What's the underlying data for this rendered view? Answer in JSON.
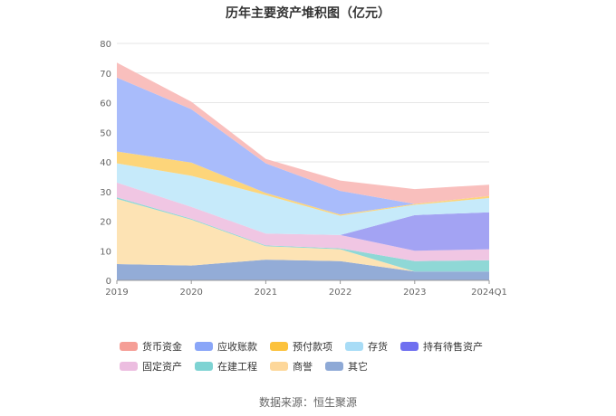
{
  "chart_data": {
    "type": "area",
    "stacked": true,
    "title": "历年主要资产堆积图（亿元）",
    "x": [
      "2019",
      "2020",
      "2021",
      "2022",
      "2023",
      "2024Q1"
    ],
    "ylim": [
      0,
      80
    ],
    "yticks": [
      0,
      10,
      20,
      30,
      40,
      50,
      60,
      70,
      80
    ],
    "grid": true,
    "legend_position": "bottom",
    "series": [
      {
        "name": "其它",
        "color": "#93acd7",
        "values": [
          5.5,
          5.0,
          7.0,
          6.5,
          3.0,
          3.0
        ]
      },
      {
        "name": "商誉",
        "color": "#fde3b4",
        "values": [
          22.0,
          15.5,
          4.5,
          4.0,
          0.0,
          0.0
        ]
      },
      {
        "name": "在建工程",
        "color": "#8fd8d6",
        "values": [
          0.5,
          0.3,
          0.3,
          0.3,
          3.5,
          3.8
        ]
      },
      {
        "name": "固定资产",
        "color": "#f0c6e3",
        "values": [
          5.0,
          4.0,
          4.0,
          4.5,
          3.5,
          3.7
        ]
      },
      {
        "name": "持有待售资产",
        "color": "#a3a3f3",
        "values": [
          0.0,
          0.0,
          0.0,
          0.0,
          12.0,
          12.5
        ]
      },
      {
        "name": "存货",
        "color": "#c6eafa",
        "values": [
          6.5,
          10.5,
          13.0,
          6.5,
          3.5,
          4.8
        ]
      },
      {
        "name": "预付款项",
        "color": "#fdd57a",
        "values": [
          4.0,
          4.5,
          0.7,
          0.4,
          0.3,
          0.7
        ]
      },
      {
        "name": "应收账款",
        "color": "#a9bcfb",
        "values": [
          25.0,
          18.0,
          10.0,
          8.0,
          0.0,
          0.0
        ]
      },
      {
        "name": "货币资金",
        "color": "#f9bfbd",
        "values": [
          5.0,
          2.5,
          1.5,
          3.5,
          5.0,
          3.8
        ]
      }
    ],
    "legend": [
      {
        "name": "货币资金",
        "color": "#f59e96"
      },
      {
        "name": "应收账款",
        "color": "#8aa6f8"
      },
      {
        "name": "预付款项",
        "color": "#fcc23c"
      },
      {
        "name": "存货",
        "color": "#a8dcf6"
      },
      {
        "name": "持有待售资产",
        "color": "#6f6ff0"
      },
      {
        "name": "固定资产",
        "color": "#ecbde0"
      },
      {
        "name": "在建工程",
        "color": "#7ed3d3"
      },
      {
        "name": "商誉",
        "color": "#fdd79a"
      },
      {
        "name": "其它",
        "color": "#8ea9d6"
      }
    ]
  },
  "source": "数据来源：恒生聚源"
}
